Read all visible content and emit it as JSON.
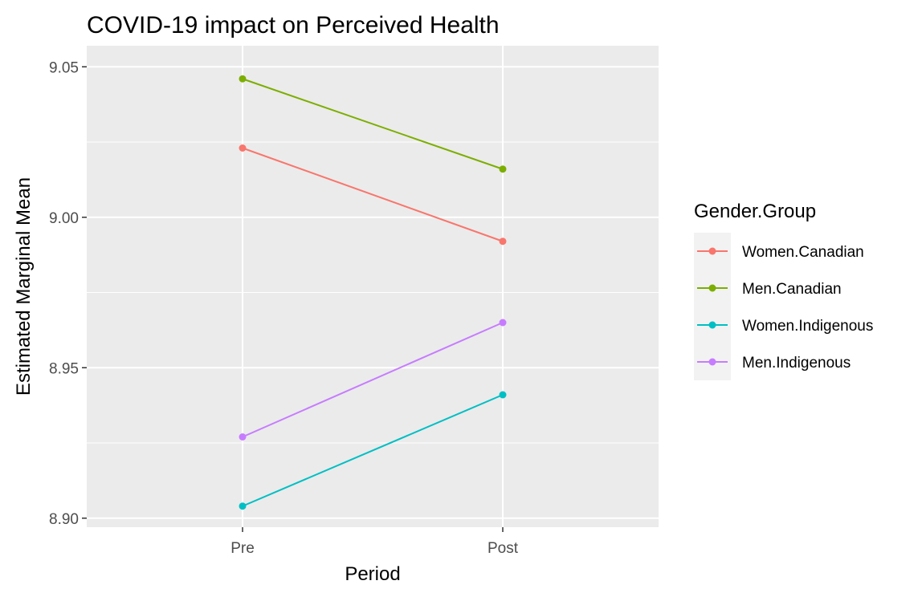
{
  "chart_data": {
    "type": "line",
    "title": "COVID-19 impact on Perceived Health",
    "xlabel": "Period",
    "ylabel": "Estimated Marginal Mean",
    "categories": [
      "Pre",
      "Post"
    ],
    "ylim": [
      8.897,
      9.057
    ],
    "yticks": [
      8.9,
      8.95,
      9.0,
      9.05
    ],
    "ytick_labels": [
      "8.90",
      "8.95",
      "9.00",
      "9.05"
    ],
    "grid": true,
    "legend": {
      "title": "Gender.Group",
      "position": "right"
    },
    "series": [
      {
        "name": "Women.Canadian",
        "color": "#F8766D",
        "values": [
          9.023,
          8.992
        ]
      },
      {
        "name": "Men.Canadian",
        "color": "#7CAE00",
        "values": [
          9.046,
          9.016
        ]
      },
      {
        "name": "Women.Indigenous",
        "color": "#00BFC4",
        "values": [
          8.904,
          8.941
        ]
      },
      {
        "name": "Men.Indigenous",
        "color": "#C77CFF",
        "values": [
          8.927,
          8.965
        ]
      }
    ]
  }
}
